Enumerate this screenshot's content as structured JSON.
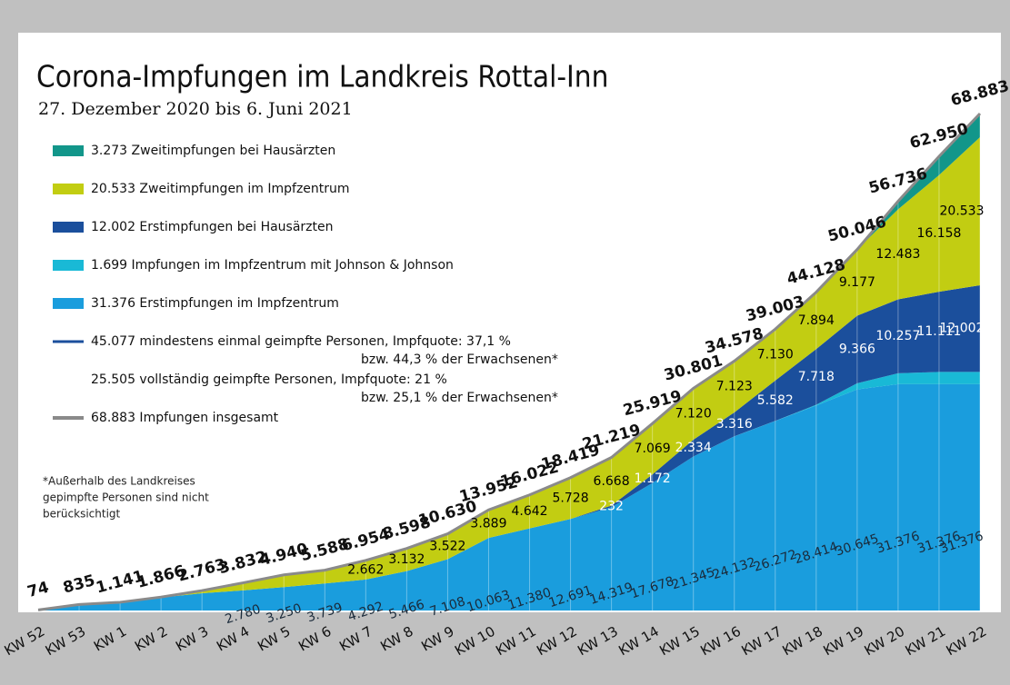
{
  "chart_data": {
    "type": "stacked-area",
    "title": "Corona-Impfungen im Landkreis Rottal-Inn",
    "subtitle": "27. Dezember 2020 bis 6. Juni 2021",
    "categories": [
      "KW 52",
      "KW 53",
      "KW 1",
      "KW 2",
      "KW 3",
      "KW 4",
      "KW 5",
      "KW 6",
      "KW 7",
      "KW 8",
      "KW 9",
      "KW 10",
      "KW 11",
      "KW 12",
      "KW 13",
      "KW 14",
      "KW 15",
      "KW 16",
      "KW 17",
      "KW 18",
      "KW 19",
      "KW 20",
      "KW 21",
      "KW 22"
    ],
    "series": [
      {
        "name": "3.273 Zweitimpfungen bei Hausärzten",
        "color": "#12968a",
        "label_color": "#000000",
        "values": [
          0,
          0,
          0,
          0,
          0,
          0,
          0,
          0,
          0,
          0,
          0,
          0,
          0,
          0,
          0,
          0,
          0,
          0,
          0,
          0,
          0,
          1120,
          2606,
          3273
        ],
        "value_labels": [
          null,
          null,
          null,
          null,
          null,
          null,
          null,
          null,
          null,
          null,
          null,
          null,
          null,
          null,
          null,
          null,
          null,
          null,
          null,
          null,
          null,
          null,
          null,
          null
        ]
      },
      {
        "name": "20.533 Zweitimpfungen im Impfzentrum",
        "color": "#c2cd12",
        "label_color": "#000000",
        "values": [
          0,
          0,
          0,
          66,
          363,
          1052,
          1690,
          1849,
          2662,
          3132,
          3522,
          3889,
          4642,
          5728,
          6668,
          7069,
          7120,
          7123,
          7130,
          7894,
          9177,
          12483,
          16158,
          20533
        ],
        "value_labels": [
          null,
          null,
          null,
          null,
          null,
          null,
          null,
          null,
          "2.662",
          "3.132",
          "3.522",
          "3.889",
          "4.642",
          "5.728",
          "6.668",
          "7.069",
          "7.120",
          "7.123",
          "7.130",
          "7.894",
          "9.177",
          "12.483",
          "16.158",
          "20.533"
        ]
      },
      {
        "name": "12.002 Erstimpfungen bei Hausärzten",
        "color": "#1b4f9c",
        "label_color": "#ffffff",
        "values": [
          0,
          0,
          0,
          0,
          0,
          0,
          0,
          0,
          0,
          0,
          0,
          0,
          0,
          0,
          232,
          1172,
          2334,
          3316,
          5582,
          7718,
          9366,
          10257,
          11111,
          12002
        ],
        "value_labels": [
          null,
          null,
          null,
          null,
          null,
          null,
          null,
          null,
          null,
          null,
          null,
          null,
          null,
          null,
          "232",
          "1.172",
          "2.334",
          "3.316",
          "5.582",
          "7.718",
          "9.366",
          "10.257",
          "11.111",
          "12.002"
        ]
      },
      {
        "name": "1.699 Impfungen im Impfzentrum mit Johnson & Johnson",
        "color": "#19b9d6",
        "label_color": "#000000",
        "values": [
          0,
          0,
          0,
          0,
          0,
          0,
          0,
          0,
          0,
          0,
          0,
          0,
          0,
          0,
          0,
          0,
          2,
          7,
          19,
          102,
          858,
          1500,
          1699,
          1699
        ],
        "value_labels": [
          null,
          null,
          null,
          null,
          null,
          null,
          null,
          null,
          null,
          null,
          null,
          null,
          null,
          null,
          null,
          null,
          null,
          null,
          null,
          null,
          null,
          null,
          null,
          null
        ]
      },
      {
        "name": "31.376 Erstimpfungen im Impfzentrum",
        "color": "#1a9ddd",
        "label_color": "#1a2a3a",
        "values": [
          74,
          835,
          1141,
          1800,
          2400,
          2780,
          3250,
          3739,
          4292,
          5466,
          7108,
          10063,
          11380,
          12691,
          14319,
          17678,
          21345,
          24132,
          26272,
          28414,
          30645,
          31376,
          31376,
          31376
        ],
        "value_labels": [
          null,
          null,
          null,
          null,
          null,
          "2.780",
          "3.250",
          "3.739",
          "4.292",
          "5.466",
          "7.108",
          "10.063",
          "11.380",
          "12.691",
          "14.319",
          "17.678",
          "21.345",
          "24.132",
          "26.272",
          "28.414",
          "30.645",
          "31.376",
          "31.376",
          "31.376"
        ]
      },
      {
        "name": "68.883 Impfungen insgesamt",
        "color": "#8a8a8a",
        "line": true,
        "values": [
          74,
          835,
          1141,
          1866,
          2763,
          3832,
          4940,
          5588,
          6954,
          8598,
          10630,
          13952,
          16022,
          18419,
          21219,
          25919,
          30801,
          34578,
          39003,
          44128,
          50046,
          56736,
          62950,
          68883
        ],
        "value_labels": [
          "74",
          "835",
          "1.141",
          "1.866",
          "2.763",
          "3.832",
          "4.940",
          "5.588",
          "6.954",
          "8.598",
          "10.630",
          "13.952",
          "16.022",
          "18.419",
          "21.219",
          "25.919",
          "30.801",
          "34.578",
          "39.003",
          "44.128",
          "50.046",
          "56.736",
          "62.950",
          "68.883"
        ]
      }
    ],
    "legend_notes": [
      {
        "lines": [
          "45.077 mindestens einmal geimpfte Personen, Impfquote: 37,1 %",
          "bzw. 44,3 % der Erwachsenen*"
        ],
        "color": "#1b4f9c"
      },
      {
        "lines": [
          "25.505 vollständig geimpfte Personen, Impfquote: 21 %",
          "bzw. 25,1 % der Erwachsenen*"
        ]
      }
    ],
    "footnote": [
      "*Außerhalb des Landkreises",
      "gepimpfte Personen sind nicht",
      "berücksichtigt"
    ]
  }
}
